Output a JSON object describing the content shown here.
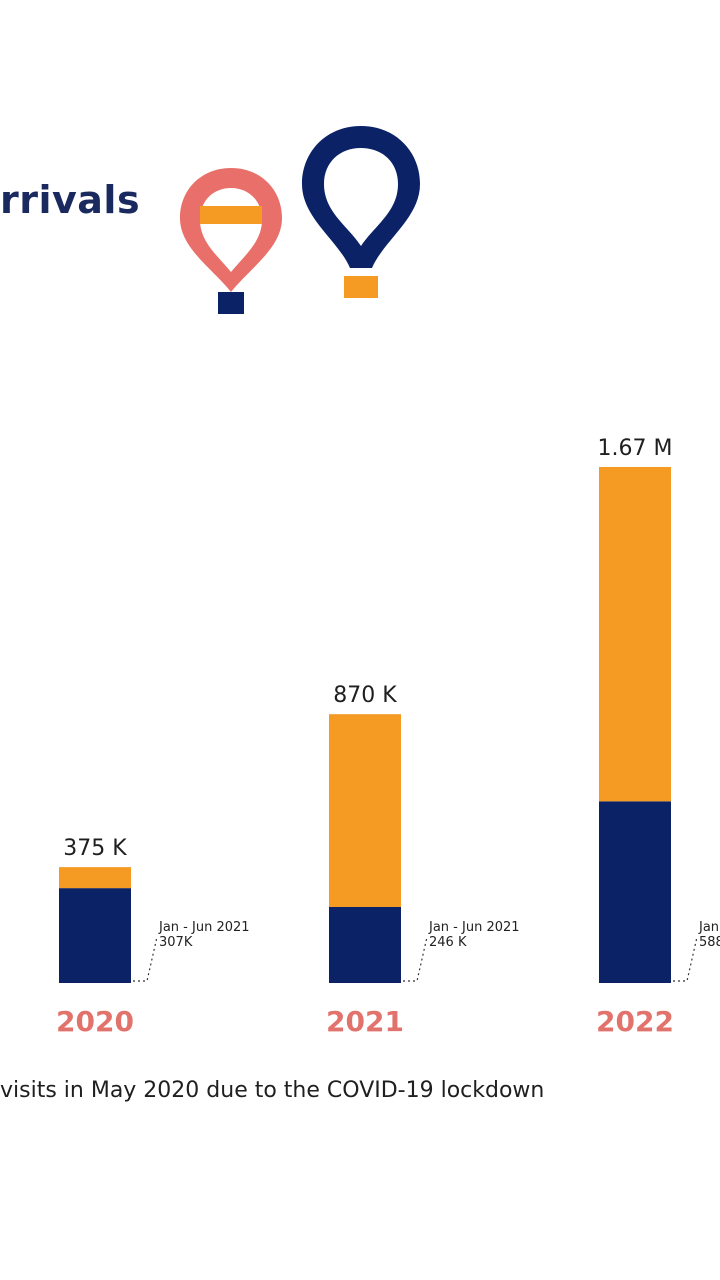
{
  "header": {
    "title_fragment": "rrivals"
  },
  "colors": {
    "navy": "#0b2266",
    "orange": "#f59a23",
    "coral": "#e86f6a",
    "year_label": "#e1726c"
  },
  "chart_data": {
    "type": "bar",
    "stacked": true,
    "categories": [
      "2020",
      "2021",
      "2022"
    ],
    "totals": [
      375000,
      870000,
      1670000
    ],
    "total_labels": [
      "375 K",
      "870 K",
      "1.67 M"
    ],
    "series": [
      {
        "values": [
          307000,
          246000,
          588000
        ]
      },
      {
        "values": [
          68000,
          624000,
          1082000
        ]
      }
    ],
    "annotations": [
      {
        "text": "Jan - Jun 2021",
        "value_text": "307K"
      },
      {
        "text": "Jan - Jun 2021",
        "value_text": "246 K"
      },
      {
        "text": "Jan",
        "value_text": "588"
      }
    ],
    "ylim": [
      0,
      1670000
    ]
  },
  "footnote": "visits in May 2020 due to the COVID-19 lockdown"
}
